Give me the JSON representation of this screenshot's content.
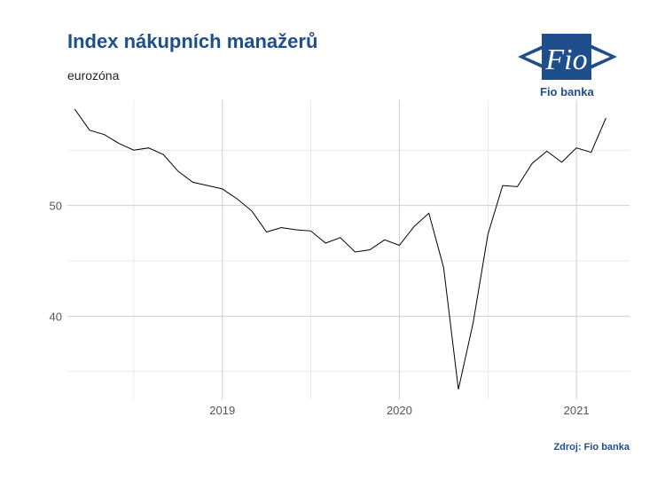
{
  "header": {
    "title": "Index nákupních manažerů",
    "subtitle": "eurozóna"
  },
  "logo": {
    "mark_text": "Fio",
    "name": "Fio banka",
    "color": "#1f4e8c"
  },
  "footer": {
    "source": "Zdroj: Fio banka"
  },
  "chart_data": {
    "type": "line",
    "title": "Index nákupních manažerů",
    "subtitle": "eurozóna",
    "xlabel": "",
    "ylabel": "",
    "x_ticks": [
      "2019",
      "2020",
      "2021"
    ],
    "y_ticks": [
      40,
      50
    ],
    "ylim": [
      32.5,
      59.5
    ],
    "grid": true,
    "line_color": "#000000",
    "series": [
      {
        "x": [
          "2018-03",
          "2018-04",
          "2018-05",
          "2018-06",
          "2018-07",
          "2018-08",
          "2018-09",
          "2018-10",
          "2018-11",
          "2018-12",
          "2019-01",
          "2019-02",
          "2019-03",
          "2019-04",
          "2019-05",
          "2019-06",
          "2019-07",
          "2019-08",
          "2019-09",
          "2019-10",
          "2019-11",
          "2019-12",
          "2020-01",
          "2020-02",
          "2020-03",
          "2020-04",
          "2020-05",
          "2020-06",
          "2020-07",
          "2020-08",
          "2020-09",
          "2020-10",
          "2020-11",
          "2020-12",
          "2021-01",
          "2021-02",
          "2021-03"
        ],
        "values": [
          58.7,
          56.8,
          56.4,
          55.6,
          55.0,
          55.2,
          54.6,
          53.1,
          52.1,
          51.8,
          51.5,
          50.6,
          49.5,
          47.6,
          48.0,
          47.8,
          47.7,
          46.6,
          47.1,
          45.8,
          46.0,
          46.9,
          46.4,
          48.1,
          49.3,
          44.4,
          33.4,
          39.4,
          47.4,
          51.8,
          51.7,
          53.8,
          54.9,
          53.9,
          55.2,
          54.8,
          57.9
        ]
      }
    ]
  }
}
